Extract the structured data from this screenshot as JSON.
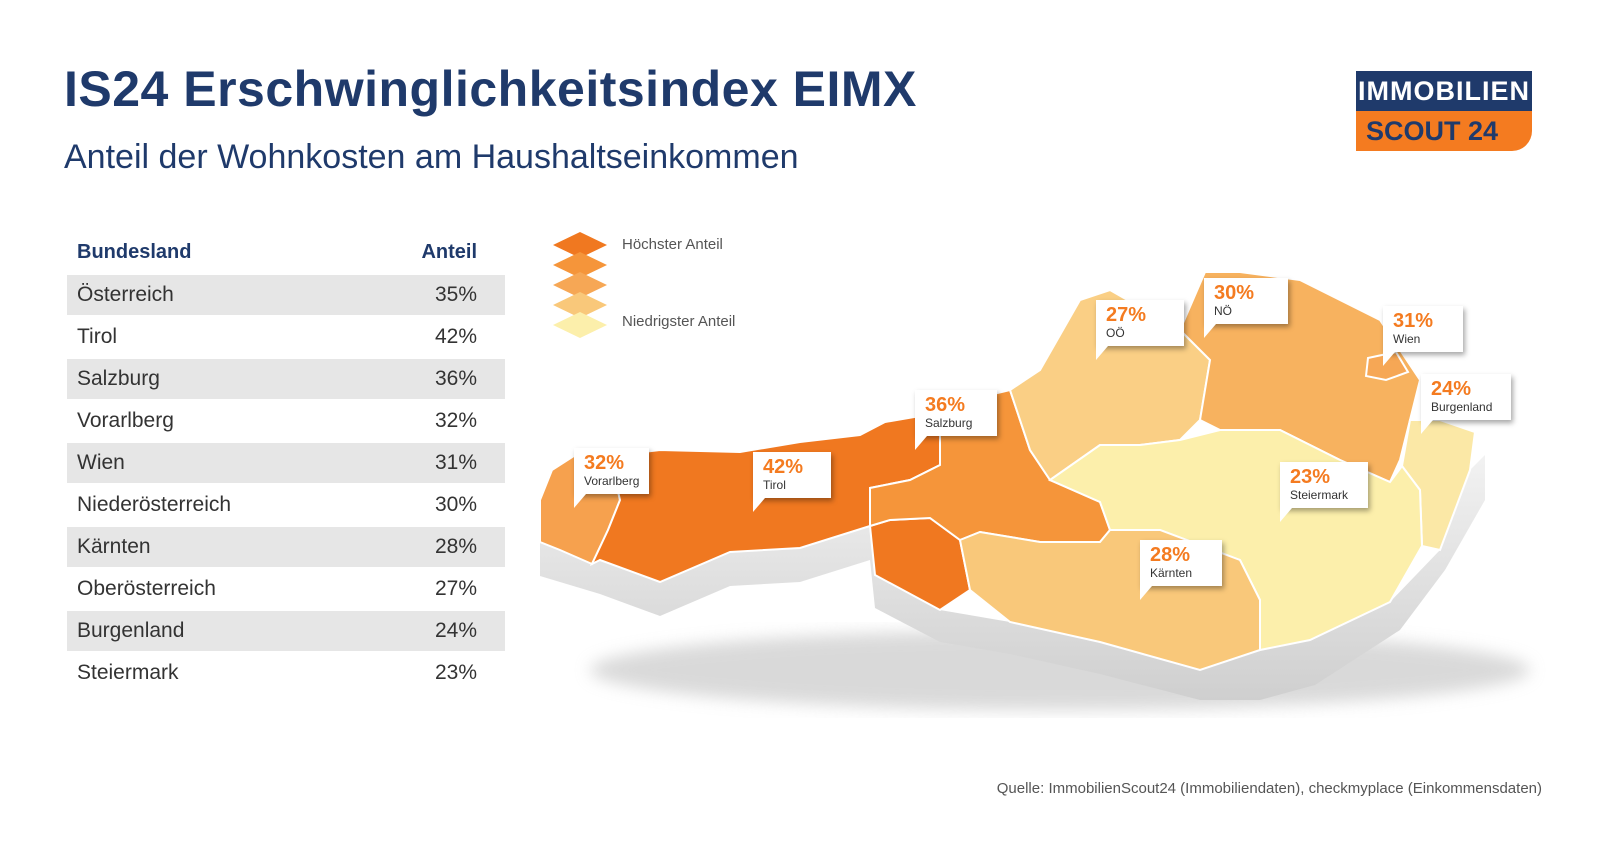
{
  "header": {
    "title": "IS24 Erschwinglichkeitsindex EIMX",
    "subtitle": "Anteil der Wohnkosten am Haushaltseinkommen"
  },
  "logo": {
    "line1": "IMMOBILIEN",
    "line2": "SCOUT 24"
  },
  "table": {
    "col1": "Bundesland",
    "col2": "Anteil",
    "rows": [
      {
        "name": "Österreich",
        "value": "35%"
      },
      {
        "name": "Tirol",
        "value": "42%"
      },
      {
        "name": "Salzburg",
        "value": "36%"
      },
      {
        "name": "Vorarlberg",
        "value": "32%"
      },
      {
        "name": "Wien",
        "value": "31%"
      },
      {
        "name": "Niederösterreich",
        "value": "30%"
      },
      {
        "name": "Kärnten",
        "value": "28%"
      },
      {
        "name": "Oberösterreich",
        "value": "27%"
      },
      {
        "name": "Burgenland",
        "value": "24%"
      },
      {
        "name": "Steiermark",
        "value": "23%"
      }
    ]
  },
  "legend": {
    "high": "Höchster Anteil",
    "low": "Niedrigster Anteil"
  },
  "colors": {
    "navy": "#1f3a6b",
    "orange": "#f47b20",
    "tirol": "#f07820",
    "salzburg": "#f5953a",
    "vorarlberg": "#f6a14e",
    "wien": "#f6a755",
    "noe": "#f7b25f",
    "kaernten": "#f9c87a",
    "ooe": "#facf85",
    "burgenland": "#fbe8a6",
    "steiermark": "#fcefab"
  },
  "map": {
    "callouts": [
      {
        "pct": "32%",
        "name": "Vorarlberg"
      },
      {
        "pct": "42%",
        "name": "Tirol"
      },
      {
        "pct": "36%",
        "name": "Salzburg"
      },
      {
        "pct": "27%",
        "name": "OÖ"
      },
      {
        "pct": "30%",
        "name": "NÖ"
      },
      {
        "pct": "31%",
        "name": "Wien"
      },
      {
        "pct": "24%",
        "name": "Burgenland"
      },
      {
        "pct": "23%",
        "name": "Steiermark"
      },
      {
        "pct": "28%",
        "name": "Kärnten"
      }
    ]
  },
  "source": "Quelle: ImmobilienScout24 (Immobiliendaten), checkmyplace (Einkommensdaten)"
}
